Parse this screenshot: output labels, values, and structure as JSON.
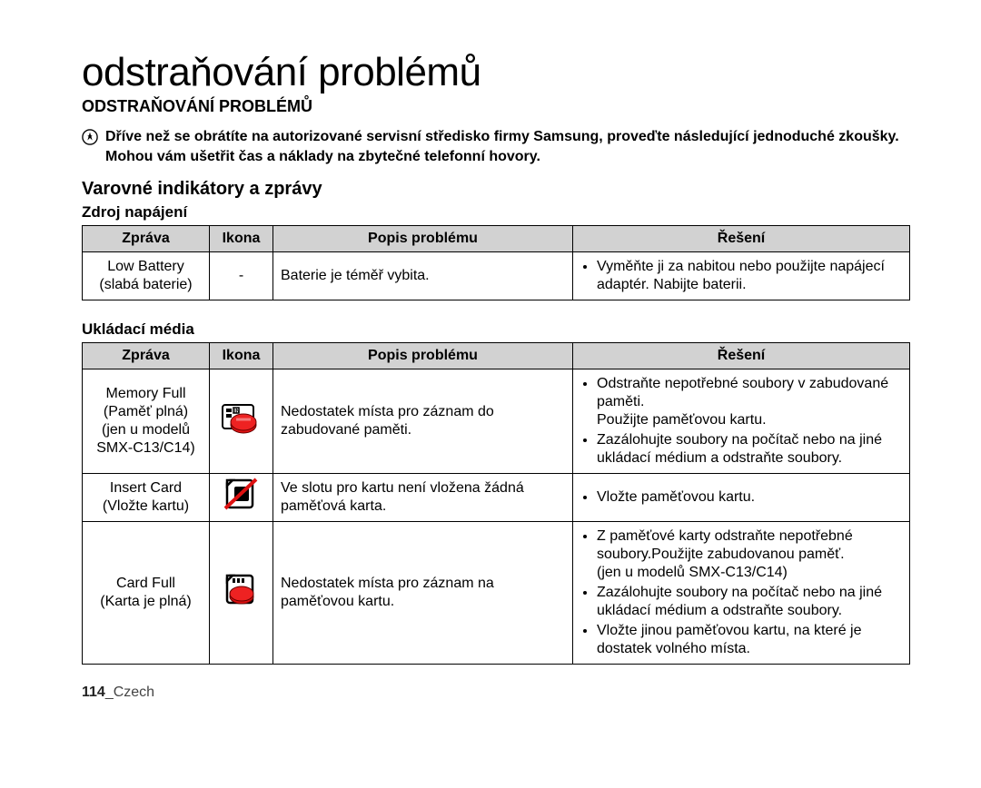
{
  "page": {
    "title": "odstraňování problémů",
    "sectionHeading": "ODSTRAŇOVÁNÍ PROBLÉMŮ",
    "introLine1": "Dříve než se obrátíte na autorizované servisní středisko firmy Samsung, proveďte následující jednoduché zkoušky.",
    "introLine2": "Mohou vám ušetřit čas a náklady na zbytečné telefonní hovory.",
    "subHeading": "Varovné indikátory a zprávy"
  },
  "tables": [
    {
      "label": "Zdroj napájení",
      "headers": {
        "msg": "Zpráva",
        "icon": "Ikona",
        "desc": "Popis problému",
        "sol": "Řešení"
      },
      "rows": [
        {
          "msg": "Low Battery\n(slabá baterie)",
          "icon": "dash",
          "desc": "Baterie je téměř vybita.",
          "sol": [
            "Vyměňte ji za nabitou nebo použijte napájecí adaptér. Nabijte baterii."
          ]
        }
      ]
    },
    {
      "label": "Ukládací média",
      "headers": {
        "msg": "Zpráva",
        "icon": "Ikona",
        "desc": "Popis problému",
        "sol": "Řešení"
      },
      "rows": [
        {
          "msg": "Memory Full\n(Paměť plná)\n(jen u modelů\nSMX-C13/C14)",
          "icon": "memory-full",
          "desc": "Nedostatek místa pro záznam do zabudované paměti.",
          "sol": [
            "Odstraňte nepotřebné soubory v zabudované paměti.\nPoužijte paměťovou kartu.",
            "Zazálohujte soubory na počítač nebo na jiné ukládací médium a odstraňte soubory."
          ]
        },
        {
          "msg": "Insert Card\n(Vložte kartu)",
          "icon": "insert-card",
          "desc": "Ve slotu pro kartu není vložena žádná paměťová karta.",
          "sol": [
            "Vložte paměťovou kartu."
          ]
        },
        {
          "msg": "Card Full\n(Karta je plná)",
          "icon": "card-full",
          "desc": "Nedostatek místa pro záznam na paměťovou kartu.",
          "sol": [
            "Z paměťové karty odstraňte nepotřebné soubory.Použijte zabudovanou paměť.\n (jen u modelů SMX-C13/C14)",
            "Zazálohujte soubory na počítač nebo na jiné ukládací médium a odstraňte soubory.",
            "Vložte jinou paměťovou kartu, na které je dostatek volného místa."
          ]
        }
      ]
    }
  ],
  "footer": {
    "pageNum": "114",
    "lang": "_Czech"
  }
}
